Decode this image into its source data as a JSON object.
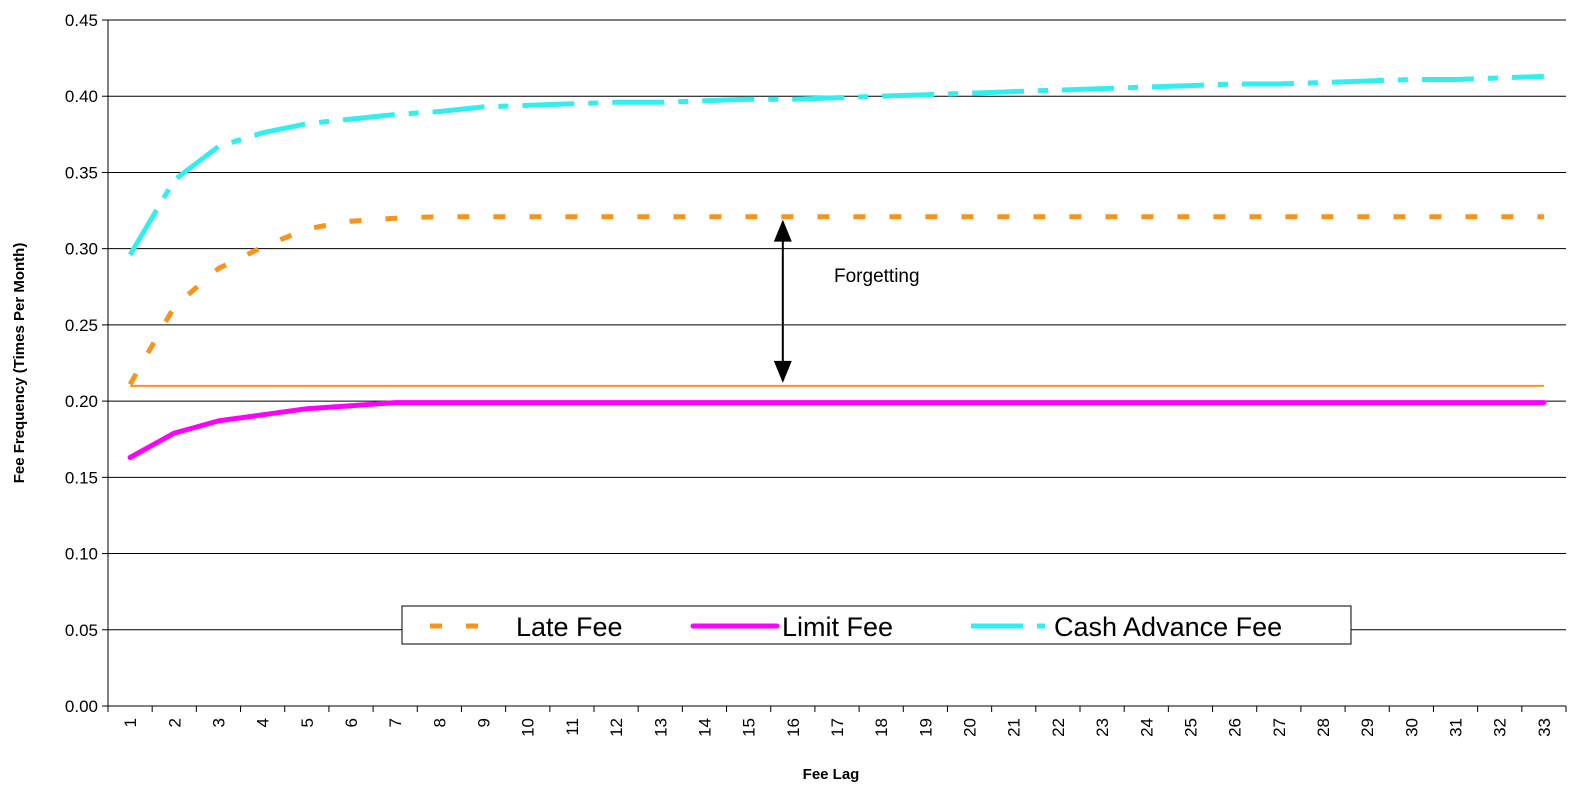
{
  "chart_data": {
    "type": "line",
    "title": "",
    "xlabel": "Fee Lag",
    "ylabel": "Fee Frequency (Times Per Month)",
    "xlim": [
      1,
      33
    ],
    "ylim": [
      0,
      0.45
    ],
    "y_ticks": [
      "0.00",
      "0.05",
      "0.10",
      "0.15",
      "0.20",
      "0.25",
      "0.30",
      "0.35",
      "0.40",
      "0.45"
    ],
    "x": [
      1,
      2,
      3,
      4,
      5,
      6,
      7,
      8,
      9,
      10,
      11,
      12,
      13,
      14,
      15,
      16,
      17,
      18,
      19,
      20,
      21,
      22,
      23,
      24,
      25,
      26,
      27,
      28,
      29,
      30,
      31,
      32,
      33
    ],
    "grid": "horizontal",
    "legend_position": "bottom-center",
    "series": [
      {
        "name": "Late Fee",
        "color": "#f7941d",
        "style": "dashed",
        "values": [
          0.211,
          0.262,
          0.287,
          0.301,
          0.313,
          0.318,
          0.32,
          0.321,
          0.321,
          0.321,
          0.321,
          0.321,
          0.321,
          0.321,
          0.321,
          0.321,
          0.321,
          0.321,
          0.321,
          0.321,
          0.321,
          0.321,
          0.321,
          0.321,
          0.321,
          0.321,
          0.321,
          0.321,
          0.321,
          0.321,
          0.321,
          0.321,
          0.321
        ]
      },
      {
        "name": "Limit Fee",
        "color": "#ff00ff",
        "style": "solid",
        "values": [
          0.163,
          0.179,
          0.187,
          0.191,
          0.195,
          0.197,
          0.199,
          0.199,
          0.199,
          0.199,
          0.199,
          0.199,
          0.199,
          0.199,
          0.199,
          0.199,
          0.199,
          0.199,
          0.199,
          0.199,
          0.199,
          0.199,
          0.199,
          0.199,
          0.199,
          0.199,
          0.199,
          0.199,
          0.199,
          0.199,
          0.199,
          0.199,
          0.199
        ]
      },
      {
        "name": "Cash Advance Fee",
        "color": "#33eeee",
        "style": "dashdot",
        "values": [
          0.296,
          0.345,
          0.367,
          0.376,
          0.382,
          0.385,
          0.388,
          0.39,
          0.393,
          0.394,
          0.395,
          0.396,
          0.396,
          0.397,
          0.398,
          0.398,
          0.399,
          0.4,
          0.401,
          0.402,
          0.403,
          0.404,
          0.405,
          0.406,
          0.407,
          0.408,
          0.408,
          0.409,
          0.41,
          0.411,
          0.411,
          0.412,
          0.413
        ]
      }
    ],
    "reference_line": {
      "color": "#f7941d",
      "y": 0.21
    },
    "annotation": {
      "text": "Forgetting",
      "x": 16,
      "y_from": 0.21,
      "y_to": 0.321
    }
  }
}
